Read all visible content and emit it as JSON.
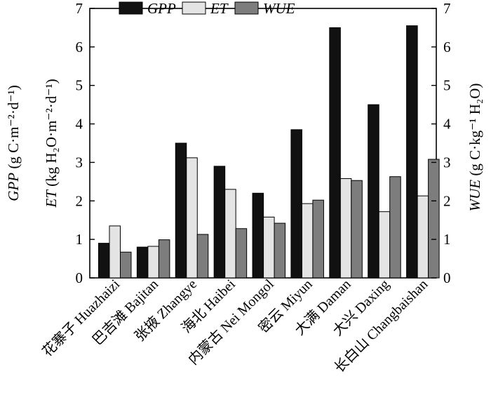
{
  "chart_data": {
    "type": "bar",
    "categories": [
      "花寨子 Huazhaizi",
      "巴吉滩 Bajitan",
      "张掖 Zhangye",
      "海北 Haibei",
      "内蒙古 Nei Mongol",
      "密云 Miyun",
      "大满 Daman",
      "大兴 Daxing",
      "长白山 Changbaishan"
    ],
    "series": [
      {
        "name": "GPP",
        "color": "#111111",
        "values": [
          0.9,
          0.8,
          3.5,
          2.9,
          2.2,
          3.85,
          6.5,
          4.5,
          6.55
        ]
      },
      {
        "name": "ET",
        "color": "#e4e4e4",
        "values": [
          1.35,
          0.82,
          3.12,
          2.3,
          1.58,
          1.93,
          2.58,
          1.72,
          2.13
        ]
      },
      {
        "name": "WUE",
        "color": "#7d7d7d",
        "values": [
          0.67,
          0.99,
          1.13,
          1.28,
          1.42,
          2.02,
          2.53,
          2.63,
          3.08
        ]
      }
    ],
    "ylim": [
      0,
      7
    ],
    "yticks": [
      "0",
      "1",
      "2",
      "3",
      "4",
      "5",
      "6",
      "7"
    ],
    "left_axis_titles": {
      "gpp": {
        "var": "GPP",
        "unit": "(g C·m⁻²·d⁻¹)"
      },
      "et": {
        "var": "ET",
        "unit": "(kg H₂O·m⁻²·d⁻¹)"
      }
    },
    "right_axis_title": {
      "var": "WUE",
      "unit": "(g C·kg⁻¹ H₂O)"
    },
    "legend_position": "top-center"
  }
}
